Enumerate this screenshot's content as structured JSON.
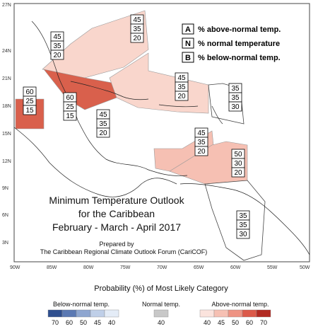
{
  "legend": {
    "A": "% above-normal temp.",
    "N": "% normal temperature",
    "B": "% below-normal temp.",
    "A_letter": "A",
    "N_letter": "N",
    "B_letter": "B"
  },
  "title": {
    "line1": "Minimum Temperature Outlook",
    "line2": "for the Caribbean",
    "line3": "February - March - April 2017",
    "prepared": "Prepared by",
    "forum": "The Caribbean Regional Climate Outlook Forum (CariCOF)"
  },
  "lat_ticks": [
    "27N",
    "24N",
    "21N",
    "18N",
    "15N",
    "12N",
    "9N",
    "6N",
    "3N"
  ],
  "lon_ticks": [
    "90W",
    "85W",
    "80W",
    "75W",
    "70W",
    "65W",
    "60W",
    "55W",
    "50W"
  ],
  "regions": [
    {
      "name": "bahamas",
      "values": [
        "45",
        "35",
        "20"
      ]
    },
    {
      "name": "belize",
      "values": [
        "45",
        "35",
        "20"
      ]
    },
    {
      "name": "central-america-west",
      "values": [
        "60",
        "25",
        "15"
      ]
    },
    {
      "name": "cuba-cayman",
      "values": [
        "60",
        "25",
        "15"
      ]
    },
    {
      "name": "jamaica-haiti",
      "values": [
        "45",
        "35",
        "20"
      ]
    },
    {
      "name": "hispaniola-pr",
      "values": [
        "45",
        "35",
        "20"
      ]
    },
    {
      "name": "leeward",
      "values": [
        "35",
        "35",
        "30"
      ]
    },
    {
      "name": "windward",
      "values": [
        "45",
        "35",
        "20"
      ]
    },
    {
      "name": "trinidad-guyana",
      "values": [
        "50",
        "30",
        "20"
      ]
    },
    {
      "name": "guianas",
      "values": [
        "35",
        "35",
        "30"
      ]
    }
  ],
  "colorbar": {
    "caption": "Probability (%) of Most Likely Category",
    "below_label": "Below-normal temp.",
    "normal_label": "Normal temp.",
    "above_label": "Above-normal temp.",
    "below_values": [
      "70",
      "60",
      "50",
      "45",
      "40"
    ],
    "normal_values": [
      "40"
    ],
    "above_values": [
      "40",
      "45",
      "50",
      "60",
      "70"
    ],
    "below_colors": [
      "#2f4f8f",
      "#5b79b3",
      "#8ea6d0",
      "#bfcfe8",
      "#e4ecf7"
    ],
    "normal_color": "#c8c8c8",
    "above_colors": [
      "#fbe3dd",
      "#f6c0b3",
      "#ee9383",
      "#dc5a4a",
      "#b22a22"
    ]
  }
}
